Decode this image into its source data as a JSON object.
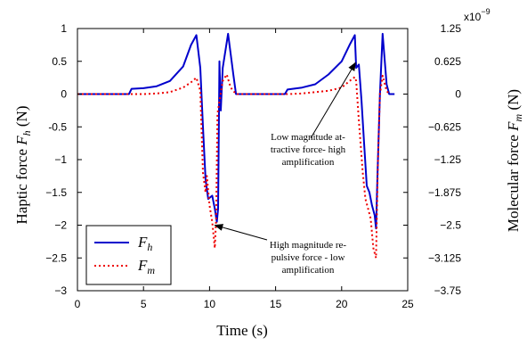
{
  "chart_data": {
    "type": "line",
    "xlabel": "Time (s)",
    "ylabel_left": {
      "text": "Haptic force ",
      "var": "F",
      "sub": "h",
      "unit": " (N)"
    },
    "ylabel_right": {
      "text": "Molecular force ",
      "var": "F",
      "sub": "m",
      "unit": " (N)"
    },
    "xlim": [
      0,
      25
    ],
    "ylim_left": [
      -3,
      1
    ],
    "ylim_right": [
      -3.75,
      1.25
    ],
    "right_scale_label": "x10",
    "right_scale_exp": "−9",
    "x_ticks": [
      "0",
      "5",
      "10",
      "15",
      "20",
      "25"
    ],
    "y_ticks_left": [
      "1",
      "0.5",
      "0",
      "-0.5",
      "−1",
      "−1.5",
      "−2",
      "−2.5",
      "−3"
    ],
    "y_ticks_right": [
      "1.25",
      "0.625",
      "0",
      "−0.625",
      "−1.25",
      "−1.875",
      "−2.5",
      "−3.125",
      "−3.75"
    ],
    "grid": false,
    "legend_position": "bottom-left",
    "series": [
      {
        "name": "F_h",
        "legend_var": "F",
        "legend_sub": "h",
        "color": "#0000cc",
        "style": "solid",
        "axis": "left",
        "points": [
          [
            0,
            0
          ],
          [
            3.9,
            0
          ],
          [
            4.1,
            0.08
          ],
          [
            5,
            0.09
          ],
          [
            6,
            0.12
          ],
          [
            7,
            0.2
          ],
          [
            8,
            0.42
          ],
          [
            8.6,
            0.75
          ],
          [
            9,
            0.9
          ],
          [
            9.3,
            0.4
          ],
          [
            9.5,
            -0.5
          ],
          [
            9.7,
            -1.3
          ],
          [
            9.9,
            -1.6
          ],
          [
            10.2,
            -1.55
          ],
          [
            10.4,
            -1.75
          ],
          [
            10.55,
            -1.95
          ],
          [
            10.65,
            -1.75
          ],
          [
            10.75,
            0.5
          ],
          [
            10.85,
            -0.25
          ],
          [
            11,
            0.4
          ],
          [
            11.4,
            0.92
          ],
          [
            11.8,
            0.3
          ],
          [
            12,
            0
          ],
          [
            15.7,
            0
          ],
          [
            15.9,
            0.07
          ],
          [
            17,
            0.1
          ],
          [
            18,
            0.15
          ],
          [
            19,
            0.3
          ],
          [
            20,
            0.5
          ],
          [
            20.6,
            0.75
          ],
          [
            21,
            0.9
          ],
          [
            21.1,
            0.4
          ],
          [
            21.3,
            0.45
          ],
          [
            21.5,
            -0.1
          ],
          [
            21.7,
            -0.75
          ],
          [
            21.9,
            -1.4
          ],
          [
            22.1,
            -1.5
          ],
          [
            22.3,
            -1.7
          ],
          [
            22.5,
            -1.85
          ],
          [
            22.6,
            -2.05
          ],
          [
            22.7,
            -1.3
          ],
          [
            22.9,
            0
          ],
          [
            23.1,
            0.92
          ],
          [
            23.4,
            0.15
          ],
          [
            23.6,
            0
          ],
          [
            24,
            0
          ]
        ]
      },
      {
        "name": "F_m",
        "legend_var": "F",
        "legend_sub": "m",
        "color": "#ee0000",
        "style": "dotted",
        "axis": "left",
        "points": [
          [
            0,
            0
          ],
          [
            5,
            0
          ],
          [
            6,
            0.01
          ],
          [
            7,
            0.03
          ],
          [
            8,
            0.1
          ],
          [
            8.6,
            0.18
          ],
          [
            9,
            0.25
          ],
          [
            9.3,
            0.05
          ],
          [
            9.5,
            -1.2
          ],
          [
            9.7,
            -1.5
          ],
          [
            9.8,
            -1.25
          ],
          [
            10,
            -1.7
          ],
          [
            10.2,
            -1.95
          ],
          [
            10.4,
            -2.35
          ],
          [
            10.5,
            -1.9
          ],
          [
            10.6,
            -0.3
          ],
          [
            11,
            0.2
          ],
          [
            11.3,
            0.3
          ],
          [
            11.6,
            0.1
          ],
          [
            12,
            0
          ],
          [
            16,
            0
          ],
          [
            17,
            0.01
          ],
          [
            18,
            0.03
          ],
          [
            19,
            0.05
          ],
          [
            20,
            0.1
          ],
          [
            20.6,
            0.2
          ],
          [
            21,
            0.26
          ],
          [
            21.1,
            0.2
          ],
          [
            21.3,
            -0.4
          ],
          [
            21.6,
            -1.2
          ],
          [
            21.8,
            -1.6
          ],
          [
            22,
            -1.75
          ],
          [
            22.2,
            -1.9
          ],
          [
            22.4,
            -2.35
          ],
          [
            22.6,
            -2.5
          ],
          [
            22.75,
            -1
          ],
          [
            22.9,
            0
          ],
          [
            23.1,
            0.28
          ],
          [
            23.4,
            0.05
          ],
          [
            23.6,
            0
          ]
        ]
      }
    ],
    "annotations": [
      {
        "lines": [
          "Low magnitude at-",
          "tractive force- high",
          "amplification"
        ],
        "arrow_to": [
          21.05,
          0.48
        ]
      },
      {
        "lines": [
          "High magnitude re-",
          "pulsive force - low",
          "amplification"
        ],
        "arrow_to": [
          10.4,
          -2.0
        ]
      }
    ]
  }
}
